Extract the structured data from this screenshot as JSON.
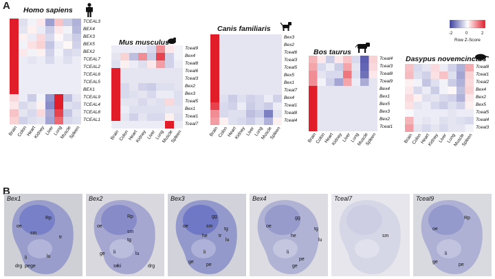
{
  "panel_labels": {
    "a": "A",
    "b": "B"
  },
  "legend": {
    "title": "Row Z-Score",
    "ticks": [
      "-2",
      "0",
      "2"
    ],
    "low_color": "#3b3fa0",
    "mid_color": "#ffffff",
    "high_color": "#e21d2a"
  },
  "tissues": [
    "Brain",
    "Colon",
    "Heart",
    "Kidney",
    "Liver",
    "Lung",
    "Muscle",
    "Spleen"
  ],
  "species": [
    {
      "name": "Homo sapiens",
      "icon": "human-icon",
      "genes": [
        "TCEAL3",
        "BEX4",
        "BEX3",
        "BEX5",
        "BEX2",
        "TCEAL7",
        "TCEAL2",
        "TCEAL6",
        "TCEAL5",
        "BEX1",
        "TCEAL9",
        "TCEAL4",
        "TCEAL8",
        "TCEAL1"
      ]
    },
    {
      "name": "Mus musculus",
      "icon": "mouse-icon",
      "genes": [
        "Tceal9",
        "Bex4",
        "Tceal8",
        "Tceal6",
        "Tceal3",
        "Bex2",
        "Bex3",
        "Tceal5",
        "Bex1",
        "Tceal1",
        "Tceal7"
      ]
    },
    {
      "name": "Canis familiaris",
      "icon": "dog-icon",
      "genes": [
        "Bex3",
        "Bex2",
        "Tceal6",
        "Tceal3",
        "Tceal5",
        "Bex5",
        "Bex1",
        "Tceal7",
        "Bex4",
        "Tceal1",
        "Tceal8",
        "Tceal4"
      ]
    },
    {
      "name": "Bos taurus",
      "icon": "cow-icon",
      "genes": [
        "Tceal4",
        "Tceal3",
        "Tceal8",
        "Tceal9",
        "Bex4",
        "Bex1",
        "Bex5",
        "Bex3",
        "Bex2",
        "Tceal1"
      ]
    },
    {
      "name": "Dasypus novemcinctus",
      "icon": "armadillo-icon",
      "genes": [
        "Tceal8",
        "Tceal1",
        "Tceal2",
        "Bex4",
        "Bex2",
        "Bex5",
        "Tceal5",
        "Tceal4",
        "Tceal3"
      ]
    }
  ],
  "heatmap_values": [
    [
      [
        3,
        -0.5,
        -0.2,
        0.3,
        -1.5,
        0.8,
        -0.8,
        -1.2
      ],
      [
        3,
        -0.4,
        0.2,
        -0.3,
        -0.8,
        0.3,
        -0.2,
        -1.1
      ],
      [
        3,
        0.2,
        -0.3,
        0.5,
        -0.6,
        0.1,
        -0.4,
        -0.8
      ],
      [
        3,
        -0.2,
        0.4,
        0.6,
        -0.9,
        -0.3,
        0.1,
        -0.7
      ],
      [
        3,
        0.3,
        -0.2,
        0.2,
        -0.7,
        -0.2,
        -0.6,
        -0.5
      ],
      [
        3,
        -0.3,
        -0.4,
        -0.3,
        -0.6,
        -0.3,
        -0.5,
        -0.3
      ],
      [
        3,
        -0.3,
        -0.3,
        -0.3,
        -0.3,
        -0.3,
        -0.3,
        -0.3
      ],
      [
        3,
        -0.3,
        -0.3,
        -0.3,
        -0.3,
        -0.3,
        -0.3,
        -0.3
      ],
      [
        3,
        -0.3,
        -0.3,
        -0.3,
        -0.3,
        -0.3,
        -0.3,
        -0.3
      ],
      [
        3,
        -0.3,
        -0.3,
        -0.3,
        -0.3,
        -0.3,
        -0.3,
        -0.3
      ],
      [
        0.5,
        -0.3,
        -0.8,
        -0.2,
        -1.6,
        3,
        -1.0,
        -0.4
      ],
      [
        0.3,
        -0.6,
        -0.4,
        0.2,
        -1.8,
        3,
        -0.5,
        -0.6
      ],
      [
        0.8,
        -0.4,
        -0.6,
        0.5,
        -1.3,
        2.5,
        -0.9,
        -0.4
      ],
      [
        0.6,
        -0.7,
        -0.5,
        -0.4,
        -1.4,
        2,
        -0.6,
        -0.5
      ]
    ],
    [
      [
        -0.3,
        -0.3,
        -0.3,
        -0.3,
        -0.6,
        1.5,
        0.3,
        -0.2
      ],
      [
        -0.4,
        0.6,
        -1,
        1.5,
        -0.8,
        2.5,
        -0.7,
        -0.2
      ],
      [
        -0.5,
        0.2,
        -0.3,
        -0.5,
        0.3,
        1.3,
        -0.7,
        -0.3
      ],
      [
        3,
        -0.4,
        -0.4,
        -0.4,
        -0.4,
        -0.4,
        -0.4,
        -0.4
      ],
      [
        3,
        -0.4,
        -0.4,
        -0.4,
        -0.4,
        -0.4,
        -0.4,
        -0.4
      ],
      [
        3,
        -0.6,
        -0.4,
        -0.7,
        -0.8,
        -0.5,
        -0.5,
        -0.4
      ],
      [
        3,
        -0.6,
        -0.5,
        -0.4,
        -0.6,
        -0.3,
        -0.3,
        -0.5
      ],
      [
        3,
        -0.4,
        -0.4,
        -0.6,
        -0.4,
        -0.5,
        0.5,
        -0.5
      ],
      [
        3,
        -0.3,
        -0.5,
        -0.5,
        -0.5,
        -0.5,
        -0.4,
        -0.4
      ],
      [
        3,
        -0.4,
        -0.7,
        -0.4,
        -0.6,
        -0.6,
        0.2,
        -0.5
      ],
      [
        -0.3,
        -0.3,
        -0.3,
        -0.3,
        -0.3,
        -0.3,
        3,
        -0.3
      ]
    ],
    [
      [
        3,
        -0.4,
        -0.4,
        -0.4,
        -0.4,
        -0.4,
        -0.4,
        -0.4
      ],
      [
        3,
        -0.4,
        -0.4,
        -0.4,
        -0.4,
        -0.4,
        -0.4,
        -0.4
      ],
      [
        3,
        -0.4,
        -0.4,
        -0.4,
        -0.4,
        -0.4,
        -0.4,
        -0.4
      ],
      [
        3,
        -0.4,
        -0.4,
        -0.4,
        -0.4,
        -0.4,
        -0.4,
        -0.4
      ],
      [
        3,
        -0.4,
        -0.4,
        -0.4,
        -0.4,
        -0.4,
        -0.4,
        -0.4
      ],
      [
        3,
        -0.4,
        -0.4,
        -0.4,
        -0.4,
        -0.4,
        -0.4,
        -0.4
      ],
      [
        3,
        -0.4,
        -0.4,
        -0.4,
        -0.4,
        -0.4,
        -0.4,
        -0.4
      ],
      [
        3,
        -0.4,
        -0.4,
        -0.4,
        -0.4,
        -0.4,
        -0.4,
        -0.4
      ],
      [
        3,
        -0.5,
        -0.8,
        -0.5,
        -0.7,
        -0.6,
        -0.3,
        -0.7
      ],
      [
        2.5,
        -0.6,
        -0.7,
        -0.3,
        -0.8,
        -0.6,
        -0.8,
        -0.3
      ],
      [
        1.5,
        -0.6,
        -0.5,
        -0.5,
        -1,
        -0.8,
        -2,
        -0.4
      ],
      [
        1.3,
        0.2,
        -0.5,
        -0.6,
        -0.8,
        -0.5,
        -1.2,
        0.2
      ]
    ],
    [
      [
        1,
        0.3,
        -0.8,
        0.3,
        0.8,
        -0.6,
        -2.5,
        0.6
      ],
      [
        1.2,
        -0.6,
        -0.3,
        -0.8,
        1.2,
        -0.4,
        -2.4,
        0.5
      ],
      [
        1.5,
        -0.4,
        -0.6,
        -0.6,
        1.8,
        -0.5,
        -2.2,
        0.3
      ],
      [
        1.5,
        -0.2,
        -0.7,
        -1.4,
        1.2,
        -0.3,
        -1.3,
        -0.4
      ],
      [
        3,
        -0.4,
        -0.4,
        -0.4,
        -0.4,
        -0.4,
        -0.4,
        -0.4
      ],
      [
        3,
        -0.4,
        -0.4,
        -0.4,
        -0.4,
        -0.4,
        -0.4,
        -0.4
      ],
      [
        3,
        -0.4,
        -0.4,
        -0.4,
        -0.4,
        -0.4,
        -0.4,
        -0.4
      ],
      [
        3,
        -0.4,
        -0.4,
        -0.4,
        -0.4,
        -0.4,
        -0.4,
        -0.4
      ],
      [
        3,
        -0.4,
        -0.4,
        -0.4,
        -0.4,
        -0.4,
        -0.4,
        -0.4
      ],
      [
        3,
        -0.4,
        -0.4,
        -0.4,
        -0.4,
        -0.4,
        -0.4,
        -0.4
      ]
    ],
    [
      [
        0.8,
        -0.6,
        -0.4,
        0.5,
        -0.3,
        -0.7,
        -1.2,
        1.1
      ],
      [
        0.9,
        -0.5,
        -0.7,
        0.4,
        0.8,
        -0.5,
        -1.4,
        0.6
      ],
      [
        0.2,
        -0.2,
        -0.9,
        -0.5,
        -0.2,
        -0.8,
        -1.2,
        0.5
      ],
      [
        0.3,
        -0.6,
        -0.3,
        -0.8,
        -0.2,
        0.1,
        -1.0,
        0.6
      ],
      [
        0.5,
        0.2,
        -0.5,
        -0.4,
        -0.6,
        -0.7,
        -1.2,
        0.3
      ],
      [
        0.4,
        -0.4,
        -0.3,
        -0.6,
        -0.8,
        -0.5,
        -0.7,
        0.2
      ],
      [
        -0.1,
        -0.3,
        -0.3,
        -0.3,
        -0.3,
        -0.4,
        -0.3,
        -0.3
      ],
      [
        1.0,
        -0.3,
        -0.4,
        -0.3,
        -0.5,
        -0.4,
        -0.5,
        -0.6
      ],
      [
        1.3,
        -0.4,
        -0.6,
        -0.4,
        -0.6,
        -0.4,
        -0.4,
        -0.2
      ]
    ]
  ],
  "embryos": [
    {
      "title": "Bex1",
      "labels": [
        "oe",
        "Rp",
        "sm",
        "tr",
        "li",
        "lu",
        "pe",
        "ge",
        "drg"
      ]
    },
    {
      "title": "Bex2",
      "labels": [
        "oe",
        "Rp",
        "sm",
        "tg",
        "ge",
        "li",
        "lu",
        "se",
        "ki",
        "drg"
      ]
    },
    {
      "title": "Bex3",
      "labels": [
        "gg",
        "oe",
        "sm",
        "tg",
        "he",
        "tr",
        "lu",
        "li",
        "ge",
        "pe"
      ]
    },
    {
      "title": "Bex4",
      "labels": [
        "gg",
        "oe",
        "tg",
        "he",
        "lu",
        "li",
        "pe",
        "ge"
      ]
    },
    {
      "title": "Tceal7",
      "labels": [
        "sm"
      ]
    },
    {
      "title": "Tceal9",
      "labels": [
        "Rp",
        "oe",
        "li",
        "ge",
        "pe"
      ]
    }
  ]
}
